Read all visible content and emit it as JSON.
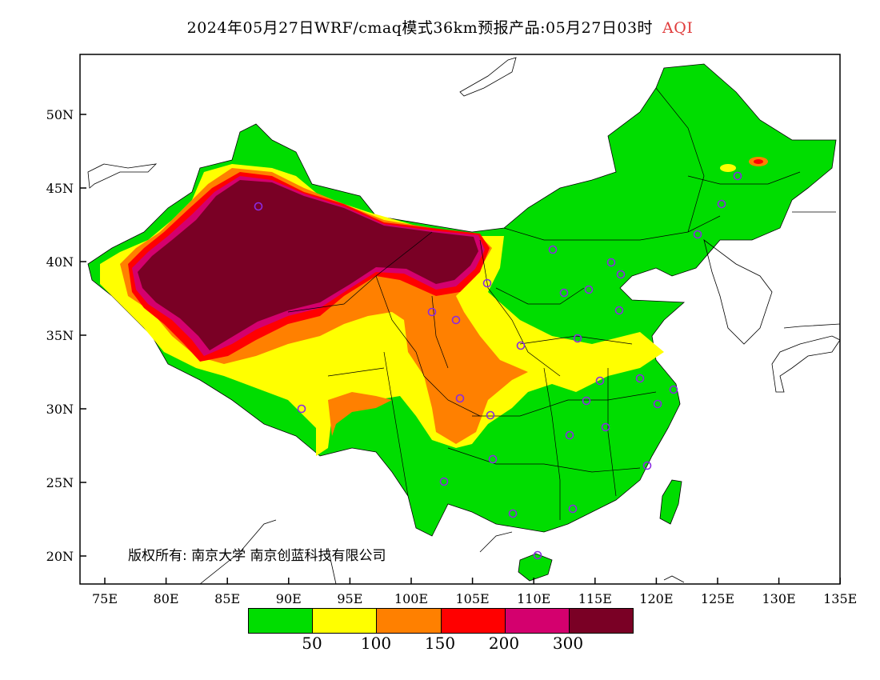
{
  "title": {
    "main": "2024年05月27日WRF/cmaq模式36km预报产品:05月27日03时",
    "variable": "AQI",
    "variable_color": "#e03c3c"
  },
  "axes": {
    "lat_ticks": [
      "50N",
      "45N",
      "40N",
      "35N",
      "30N",
      "25N",
      "20N"
    ],
    "lon_ticks": [
      "75E",
      "80E",
      "85E",
      "90E",
      "95E",
      "100E",
      "105E",
      "110E",
      "115E",
      "120E",
      "125E",
      "130E",
      "135E"
    ]
  },
  "legend": {
    "colors": [
      "#00dd00",
      "#ffff00",
      "#ff8000",
      "#ff0000",
      "#d4006e",
      "#7a0025"
    ],
    "labels": [
      "50",
      "100",
      "150",
      "200",
      "300"
    ]
  },
  "copyright": "版权所有: 南京大学  南京创蓝科技有限公司",
  "station_marker_color": "#8a2be2"
}
